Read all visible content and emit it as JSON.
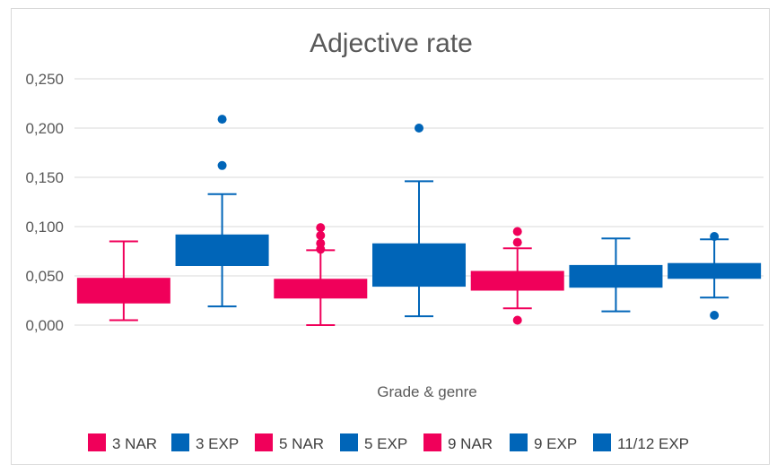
{
  "chart_data": {
    "type": "box",
    "title": "Adjective rate",
    "xlabel": "Grade & genre",
    "ylabel": "",
    "ylim": [
      0,
      0.25
    ],
    "yticks": [
      "0,000",
      "0,050",
      "0,100",
      "0,150",
      "0,200",
      "0,250"
    ],
    "grid": true,
    "legend_position": "bottom",
    "colors": {
      "NAR": "#f0005a",
      "EXP": "#0065b8",
      "grid": "#d9d9d9",
      "text": "#595959"
    },
    "series": [
      {
        "name": "3 NAR",
        "group": "NAR",
        "min": 0.005,
        "q1": 0.022,
        "median": 0.035,
        "q3": 0.048,
        "max": 0.085,
        "outliers": []
      },
      {
        "name": "3 EXP",
        "group": "EXP",
        "min": 0.019,
        "q1": 0.06,
        "median": 0.078,
        "q3": 0.092,
        "max": 0.133,
        "outliers": [
          0.162,
          0.209
        ]
      },
      {
        "name": "5 NAR",
        "group": "NAR",
        "min": 0.0,
        "q1": 0.027,
        "median": 0.036,
        "q3": 0.047,
        "max": 0.076,
        "outliers": [
          0.077,
          0.083,
          0.091,
          0.099
        ]
      },
      {
        "name": "5 EXP",
        "group": "EXP",
        "min": 0.009,
        "q1": 0.039,
        "median": 0.058,
        "q3": 0.083,
        "max": 0.146,
        "outliers": [
          0.2
        ]
      },
      {
        "name": "9 NAR",
        "group": "NAR",
        "min": 0.017,
        "q1": 0.035,
        "median": 0.045,
        "q3": 0.055,
        "max": 0.078,
        "outliers": [
          0.005,
          0.084,
          0.095
        ]
      },
      {
        "name": "9 EXP",
        "group": "EXP",
        "min": 0.014,
        "q1": 0.038,
        "median": 0.048,
        "q3": 0.061,
        "max": 0.088,
        "outliers": []
      },
      {
        "name": "11/12 EXP",
        "group": "EXP",
        "min": 0.028,
        "q1": 0.047,
        "median": 0.055,
        "q3": 0.063,
        "max": 0.087,
        "outliers": [
          0.01,
          0.09
        ]
      }
    ]
  }
}
